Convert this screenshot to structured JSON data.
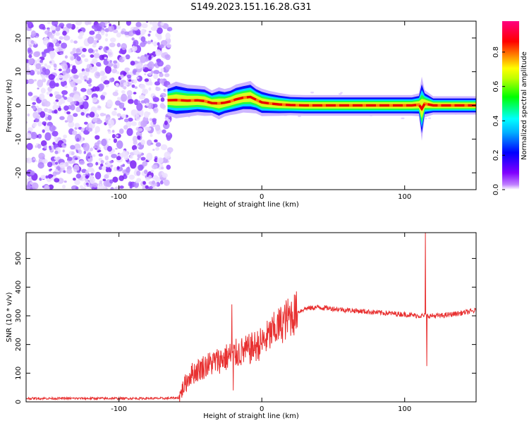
{
  "figure_title": "S149.2023.151.16.28.G31",
  "chart_data": [
    {
      "type": "heatmap",
      "title": "S149.2023.151.16.28.G31",
      "xlabel": "Height of straight line (km)",
      "ylabel": "Frequency (Hz)",
      "xlim": [
        -165,
        150
      ],
      "ylim": [
        -25,
        25
      ],
      "x_ticks": [
        -100,
        0,
        100
      ],
      "y_ticks": [
        -20,
        -10,
        0,
        10,
        20
      ],
      "noise_region_x": [
        -165,
        -67
      ],
      "ridge": [
        {
          "x": -66,
          "y": 1.5,
          "w": 1.3
        },
        {
          "x": -60,
          "y": 1.6,
          "w": 1.6
        },
        {
          "x": -52,
          "y": 1.4,
          "w": 1.4
        },
        {
          "x": -45,
          "y": 1.5,
          "w": 1.3
        },
        {
          "x": -40,
          "y": 1.3,
          "w": 1.3
        },
        {
          "x": -35,
          "y": 0.7,
          "w": 1.1
        },
        {
          "x": -30,
          "y": 0.6,
          "w": 1.4
        },
        {
          "x": -26,
          "y": 0.8,
          "w": 1.2
        },
        {
          "x": -22,
          "y": 1.2,
          "w": 1.2
        },
        {
          "x": -18,
          "y": 1.8,
          "w": 1.3
        },
        {
          "x": -13,
          "y": 2.3,
          "w": 1.3
        },
        {
          "x": -8,
          "y": 2.5,
          "w": 1.4
        },
        {
          "x": -4,
          "y": 1.7,
          "w": 1.2
        },
        {
          "x": 0,
          "y": 0.9,
          "w": 1.2
        },
        {
          "x": 5,
          "y": 0.6,
          "w": 1.1
        },
        {
          "x": 12,
          "y": 0.3,
          "w": 1.0
        },
        {
          "x": 20,
          "y": 0.1,
          "w": 0.9
        },
        {
          "x": 30,
          "y": 0.0,
          "w": 0.9
        },
        {
          "x": 45,
          "y": 0.0,
          "w": 0.9
        },
        {
          "x": 60,
          "y": 0.0,
          "w": 0.9
        },
        {
          "x": 75,
          "y": 0.0,
          "w": 0.9
        },
        {
          "x": 90,
          "y": 0.0,
          "w": 0.9
        },
        {
          "x": 105,
          "y": 0.0,
          "w": 0.9
        },
        {
          "x": 110,
          "y": 0.2,
          "w": 1.0
        },
        {
          "x": 112,
          "y": -1.0,
          "w": 2.8
        },
        {
          "x": 114,
          "y": 0.5,
          "w": 1.2
        },
        {
          "x": 120,
          "y": 0.0,
          "w": 0.8
        },
        {
          "x": 135,
          "y": 0.0,
          "w": 0.8
        },
        {
          "x": 150,
          "y": 0.0,
          "w": 0.8
        }
      ]
    },
    {
      "type": "line",
      "xlabel": "Height of straight line (km)",
      "ylabel": "SNR (10 * v/v)",
      "xlim": [
        -165,
        150
      ],
      "ylim": [
        0,
        590
      ],
      "x_ticks": [
        -100,
        0,
        100
      ],
      "y_ticks": [
        0,
        100,
        200,
        300,
        400,
        500
      ],
      "color": "#e83030",
      "trend": [
        {
          "x": -165,
          "y": 12
        },
        {
          "x": -120,
          "y": 12
        },
        {
          "x": -70,
          "y": 12
        },
        {
          "x": -58,
          "y": 14
        },
        {
          "x": -55,
          "y": 50
        },
        {
          "x": -50,
          "y": 95
        },
        {
          "x": -40,
          "y": 125
        },
        {
          "x": -30,
          "y": 145
        },
        {
          "x": -20,
          "y": 165
        },
        {
          "x": -10,
          "y": 180
        },
        {
          "x": 0,
          "y": 205
        },
        {
          "x": 10,
          "y": 255
        },
        {
          "x": 20,
          "y": 300
        },
        {
          "x": 30,
          "y": 325
        },
        {
          "x": 40,
          "y": 330
        },
        {
          "x": 50,
          "y": 325
        },
        {
          "x": 60,
          "y": 320
        },
        {
          "x": 80,
          "y": 312
        },
        {
          "x": 100,
          "y": 305
        },
        {
          "x": 110,
          "y": 300
        },
        {
          "x": 125,
          "y": 300
        },
        {
          "x": 140,
          "y": 310
        },
        {
          "x": 150,
          "y": 318
        }
      ],
      "spikes": [
        {
          "x": -21,
          "y": 340
        },
        {
          "x": -20,
          "y": 40
        },
        {
          "x": 114.5,
          "y": 590
        },
        {
          "x": 115.5,
          "y": 125
        }
      ]
    }
  ],
  "colorbar": {
    "label": "Normalized spectral amplitude",
    "ticks": [
      "0.0",
      "0.2",
      "0.4",
      "0.6",
      "0.8"
    ],
    "tick_values": [
      0.0,
      0.2,
      0.4,
      0.6,
      0.8
    ],
    "range": [
      0,
      0.98
    ],
    "stops": [
      "#ffffff",
      "#8000ff",
      "#0000ff",
      "#00ffff",
      "#00ff00",
      "#ffff00",
      "#ff8000",
      "#ff0000",
      "#ff0080"
    ]
  }
}
